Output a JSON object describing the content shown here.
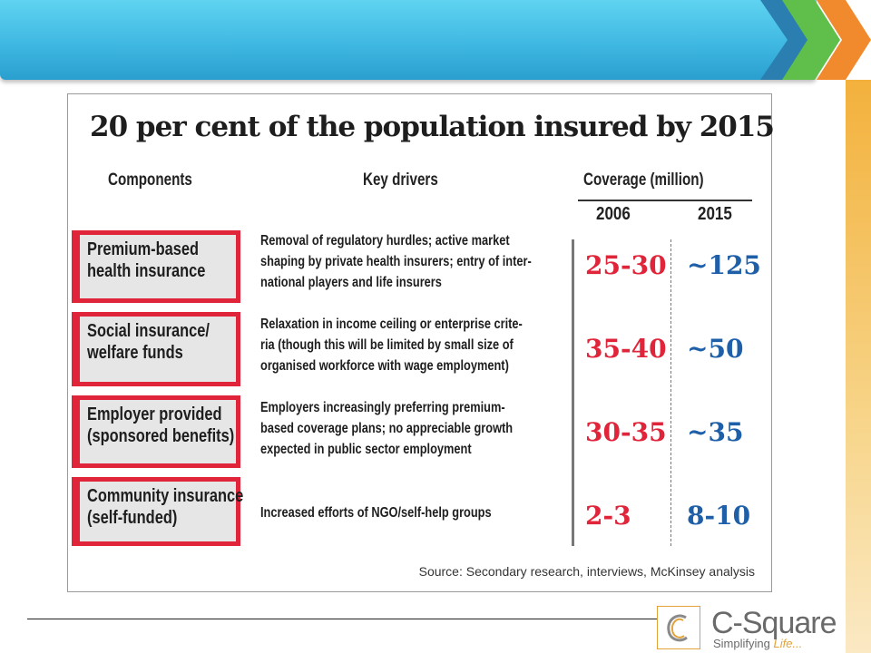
{
  "title": "20 per cent of the population insured by 2015",
  "headers": {
    "components": "Components",
    "drivers": "Key drivers",
    "coverage": "Coverage (million)",
    "year_2006": "2006",
    "year_2015": "2015"
  },
  "rows": [
    {
      "component": [
        "Premium-based",
        "health insurance"
      ],
      "drivers": [
        "Removal of regulatory hurdles; active market",
        "shaping by private health insurers; entry of inter-",
        "national players and life insurers"
      ],
      "cov_2006": "25-30",
      "cov_2015": "~125"
    },
    {
      "component": [
        "Social insurance/",
        "welfare funds"
      ],
      "drivers": [
        "Relaxation in income ceiling or enterprise crite-",
        "ria (though this will be limited by small size of",
        "organised workforce with wage employment)"
      ],
      "cov_2006": "35-40",
      "cov_2015": "~50"
    },
    {
      "component": [
        "Employer provided",
        "(sponsored benefits)"
      ],
      "drivers": [
        "Employers increasingly preferring premium-",
        "based coverage plans; no appreciable growth",
        "expected in public sector employment"
      ],
      "cov_2006": "30-35",
      "cov_2015": "~35"
    },
    {
      "component": [
        "Community insurance",
        "(self-funded)"
      ],
      "drivers": [
        "Increased efforts of NGO/self-help groups"
      ],
      "cov_2006": "2-3",
      "cov_2015": "8-10"
    }
  ],
  "source": "Source: Secondary research, interviews, McKinsey analysis",
  "logo": {
    "name": "C-Square",
    "tagline_main": "Simplifying ",
    "tagline_accent": "Life..."
  },
  "colors": {
    "banner": "#3fb8e2",
    "red_accent": "#e0253a",
    "blue_value": "#1e5fa8",
    "orange_accent": "#e3a33a"
  }
}
